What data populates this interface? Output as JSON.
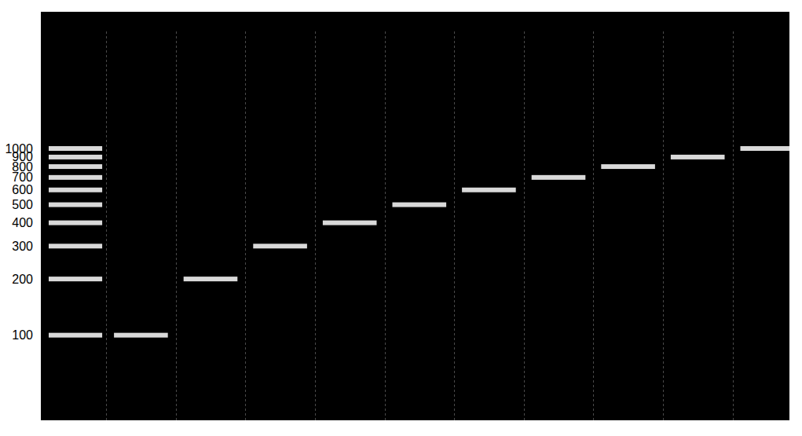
{
  "chart_data": {
    "type": "gel",
    "categories": [
      null,
      null,
      null,
      null,
      null,
      null,
      null,
      null,
      null,
      null,
      null
    ],
    "ladder": [
      100,
      200,
      300,
      400,
      500,
      600,
      700,
      800,
      900,
      1000
    ],
    "values": [
      null,
      100,
      200,
      300,
      400,
      500,
      600,
      700,
      800,
      900,
      1000
    ],
    "color": "#d9d9d9",
    "log": "y",
    "ylim": [
      35,
      5400
    ],
    "yticks": [
      100,
      200,
      300,
      400,
      500,
      600,
      700,
      800,
      900,
      1000
    ],
    "tick_labels": "y"
  }
}
